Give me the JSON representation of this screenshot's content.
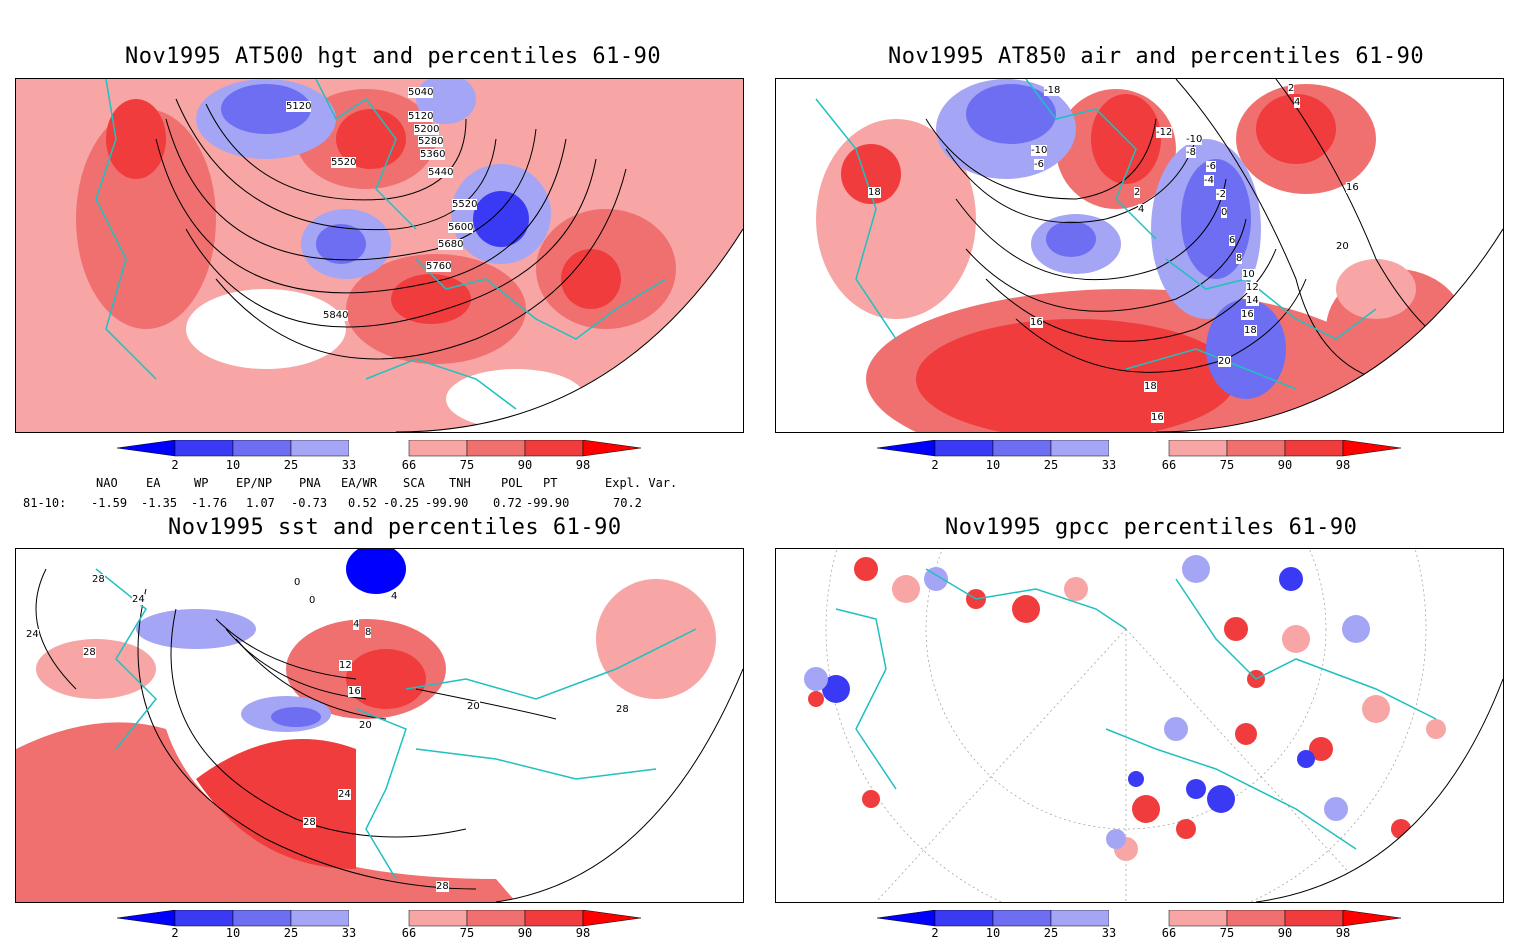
{
  "panels": [
    {
      "title": "Nov1995 AT500 hgt and percentiles 61-90",
      "contour_labels": [
        "5040",
        "5120",
        "5120",
        "5200",
        "5280",
        "5360",
        "5440",
        "5520",
        "5520",
        "5600",
        "5680",
        "5760",
        "5840"
      ]
    },
    {
      "title": "Nov1995 AT850 air and percentiles 61-90",
      "contour_labels": [
        "-18",
        "-10",
        "-6",
        "-12",
        "-10",
        "-8",
        "-6",
        "-4",
        "-2",
        "0",
        "2",
        "4",
        "6",
        "8",
        "10",
        "12",
        "14",
        "16",
        "18",
        "20",
        "16",
        "18",
        "16",
        "18",
        "2",
        "4",
        "16",
        "20"
      ]
    },
    {
      "title": "Nov1995 sst and percentiles 61-90",
      "contour_labels": [
        "28",
        "24",
        "24",
        "28",
        "0",
        "0",
        "4",
        "4",
        "8",
        "12",
        "16",
        "20",
        "20",
        "24",
        "28",
        "28",
        "28"
      ]
    },
    {
      "title": "Nov1995 gpcc percentiles 61-90",
      "contour_labels": []
    }
  ],
  "colorbar": {
    "labels": [
      "2",
      "10",
      "25",
      "33",
      "66",
      "75",
      "90",
      "98"
    ],
    "colors": {
      "blue_extreme": "#0000ff",
      "blue_strong": "#3a3af5",
      "blue_mid": "#6e6ef2",
      "blue_light": "#a5a5f5",
      "white": "#ffffff",
      "red_light": "#f7a5a5",
      "red_mid": "#f07070",
      "red_strong": "#f03c3c",
      "red_extreme": "#ff0000"
    }
  },
  "indices": {
    "headers": [
      "NAO",
      "EA",
      "WP",
      "EP/NP",
      "PNA",
      "EA/WR",
      "SCA",
      "TNH",
      "POL",
      "PT",
      "Expl. Var."
    ],
    "row_label": "81-10:",
    "values": [
      "-1.59",
      "-1.35",
      "-1.76",
      "1.07",
      "-0.73",
      "0.52",
      "-0.25",
      "-99.90",
      "0.72",
      "-99.90",
      "70.2"
    ]
  },
  "colors": {
    "coastline": "#20c0c0",
    "contour": "#000000",
    "grid": "#888888"
  }
}
